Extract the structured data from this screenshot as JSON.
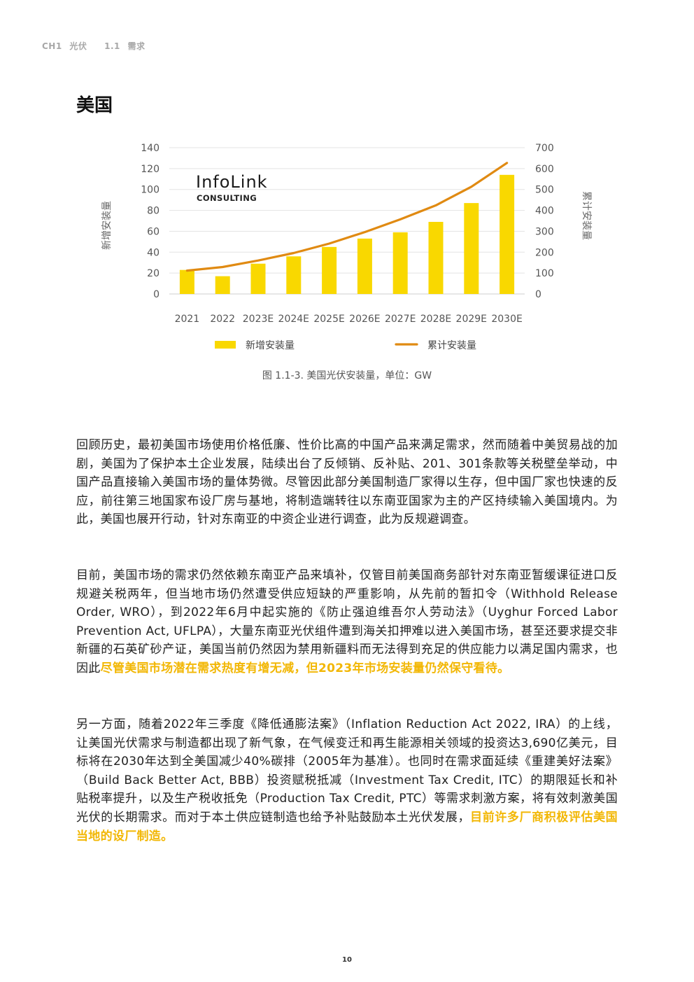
{
  "header": {
    "chapter": "CH1",
    "chapter_title": "光伏",
    "section": "1.1",
    "section_title": "需求"
  },
  "title": "美国",
  "chart_data": {
    "type": "bar+line",
    "categories": [
      "2021",
      "2022",
      "2023E",
      "2024E",
      "2025E",
      "2026E",
      "2027E",
      "2028E",
      "2029E",
      "2030E"
    ],
    "series": [
      {
        "name": "新增安装量",
        "type": "bar",
        "axis": "left",
        "color": "#f9d800",
        "values": [
          23,
          17,
          29,
          36,
          45,
          53,
          59,
          69,
          87,
          114
        ]
      },
      {
        "name": "累计安装量",
        "type": "line",
        "axis": "right",
        "color": "#e08a12",
        "values": [
          112,
          129,
          160,
          196,
          241,
          296,
          357,
          424,
          513,
          627
        ]
      }
    ],
    "ylabel": "新增安装量",
    "y2label": "累计安装量",
    "ylim": [
      0,
      140
    ],
    "y2lim": [
      0,
      700
    ],
    "yticks": [
      "140",
      "120",
      "100",
      "80",
      "60",
      "40",
      "20",
      "0"
    ],
    "y2ticks": [
      "700",
      "600",
      "500",
      "400",
      "300",
      "200",
      "100",
      "0"
    ],
    "legend": [
      "新增安装量",
      "累计安装量"
    ],
    "legend_position": "bottom",
    "grid": true,
    "logo_text": "InfoLink",
    "logo_subtext": "CONSULTING"
  },
  "caption": "图 1.1-3. 美国光伏安装量，单位：GW",
  "paragraphs": {
    "p1": "回顾历史，最初美国市场使用价格低廉、性价比高的中国产品来满足需求，然而随着中美贸易战的加剧，美国为了保护本土企业发展，陆续出台了反倾销、反补贴、201、301条款等关税壁垒举动，中国产品直接输入美国市场的量体势微。尽管因此部分美国制造厂家得以生存，但中国厂家也快速的反应，前往第三地国家布设厂房与基地，将制造端转往以东南亚国家为主的产区持续输入美国境内。为此，美国也展开行动，针对东南亚的中资企业进行调查，此为反规避调查。",
    "p2a": "目前，美国市场的需求仍然依赖东南亚产品来填补，仅管目前美国商务部针对东南亚暂缓课征进口反规避关税两年，但当地市场仍然遭受供应短缺的严重影响，从先前的暂扣令（Withhold Release Order, WRO），到2022年6月中起实施的《防止强迫维吾尔人劳动法》（Uyghur Forced Labor Prevention Act, UFLPA），大量东南亚光伏组件遭到海关扣押难以进入美国市场，甚至还要求提交非新疆的石英矿砂产证，美国当前仍然因为禁用新疆料而无法得到充足的供应能力以满足国内需求，也因此",
    "p2b": "尽管美国市场潜在需求热度有增无减，但2023年市场安装量仍然保守看待。",
    "p3a": "另一方面，随着2022年三季度《降低通膨法案》（Inflation Reduction Act 2022, IRA）的上线，让美国光伏需求与制造都出现了新气象，在气候变迁和再生能源相关领域的投资达3,690亿美元，目标将在2030年达到全美国减少40%碳排（2005年为基准）。也同时在需求面延续《重建美好法案》（Build Back Better Act, BBB）投资赋税抵减（Investment Tax Credit, ITC）的期限延长和补贴税率提升，以及生产税收抵免（Production Tax Credit, PTC）等需求刺激方案，将有效刺激美国光伏的长期需求。而对于本土供应链制造也给予补贴鼓励本土光伏发展，",
    "p3b": "目前许多厂商积极评估美国当地的设厂制造。"
  },
  "page_number": "10"
}
